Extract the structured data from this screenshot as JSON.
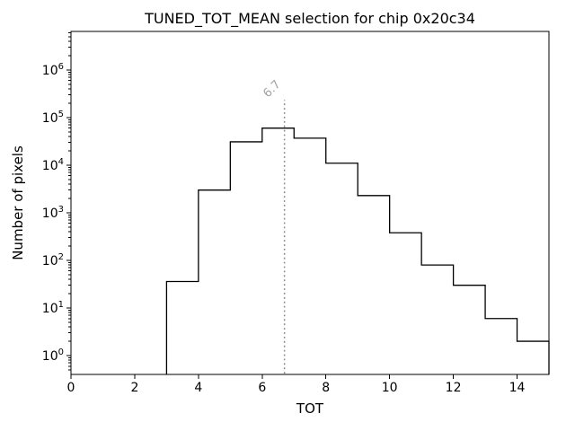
{
  "chart_data": {
    "type": "histogram-step",
    "title": "TUNED_TOT_MEAN selection for chip 0x20c34",
    "xlabel": "TOT",
    "ylabel": "Number of pixels",
    "xlim": [
      0,
      15
    ],
    "ylim_log_exponents": [
      -0.396,
      6.81
    ],
    "yscale": "log",
    "grid": false,
    "legend": null,
    "xticks": [
      0,
      2,
      4,
      6,
      8,
      10,
      12,
      14
    ],
    "ytick_exponents": [
      0,
      1,
      2,
      3,
      4,
      5,
      6
    ],
    "ytick_labels": [
      "10^0",
      "10^1",
      "10^2",
      "10^3",
      "10^4",
      "10^5",
      "10^6"
    ],
    "bin_edges": [
      3,
      4,
      5,
      6,
      7,
      8,
      9,
      10,
      11,
      12,
      13,
      14,
      15
    ],
    "counts": [
      36,
      3000,
      31000,
      60000,
      37000,
      11000,
      2300,
      380,
      80,
      30,
      6,
      2
    ],
    "vline": {
      "x": 6.7,
      "label": "6.7",
      "top_fraction": 0.8
    },
    "colors": {
      "hist_line": "#000000",
      "axes": "#000000",
      "vline": "#888888",
      "vline_label": "#a3a3a3",
      "background": "#ffffff"
    }
  }
}
